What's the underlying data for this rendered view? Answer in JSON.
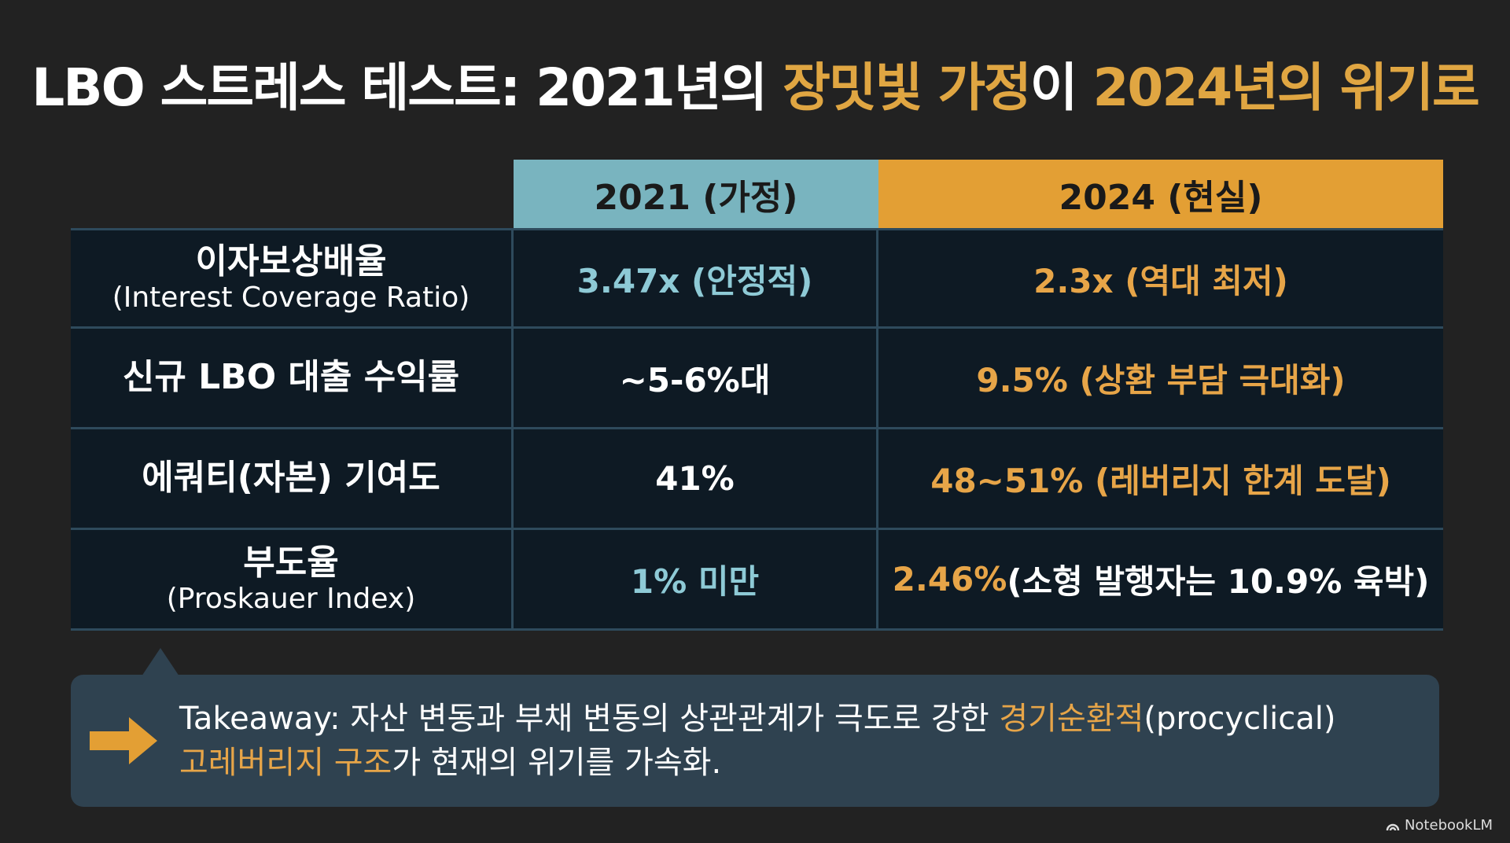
{
  "title": {
    "part1": "LBO 스트레스 테스트: 2021년의 ",
    "highlight1": "장밋빛 가정",
    "part2": "이 ",
    "highlight2": "2024년의 위기로"
  },
  "table": {
    "headers": [
      "",
      "2021 (가정)",
      "2024 (현실)"
    ],
    "rows": [
      {
        "label_ko": "이자보상배율",
        "label_en": "(Interest Coverage Ratio)",
        "v2021": "3.47x (안정적)",
        "v2024_orange": "2.3x (역대 최저)",
        "v2024_white": ""
      },
      {
        "label_ko": "신규 LBO 대출 수익률",
        "label_en": "",
        "v2021": "~5-6%대",
        "v2024_orange": "9.5% (상환 부담 극대화)",
        "v2024_white": ""
      },
      {
        "label_ko": "에쿼티(자본) 기여도",
        "label_en": "",
        "v2021": "41%",
        "v2024_orange": "48~51% (레버리지 한계 도달)",
        "v2024_white": ""
      },
      {
        "label_ko": "부도율",
        "label_en": "(Proskauer Index)",
        "v2021": "1% 미만",
        "v2024_orange": "2.46%",
        "v2024_white": " (소형 발행자는 10.9% 육박)"
      }
    ]
  },
  "takeaway": {
    "line1_a": "Takeaway: 자산 변동과 부채 변동의 상관관계가 극도로 강한 ",
    "line1_hl": "경기순환적",
    "line1_b": "(procyclical)",
    "line2_hl": "고레버리지 구조",
    "line2_b": "가 현재의 위기를 가속화."
  },
  "brand": "NotebookLM",
  "colors": {
    "background": "#222222",
    "accent_orange": "#e39f34",
    "accent_blue": "#79b4bf",
    "cell_bg": "#0e1a24"
  }
}
